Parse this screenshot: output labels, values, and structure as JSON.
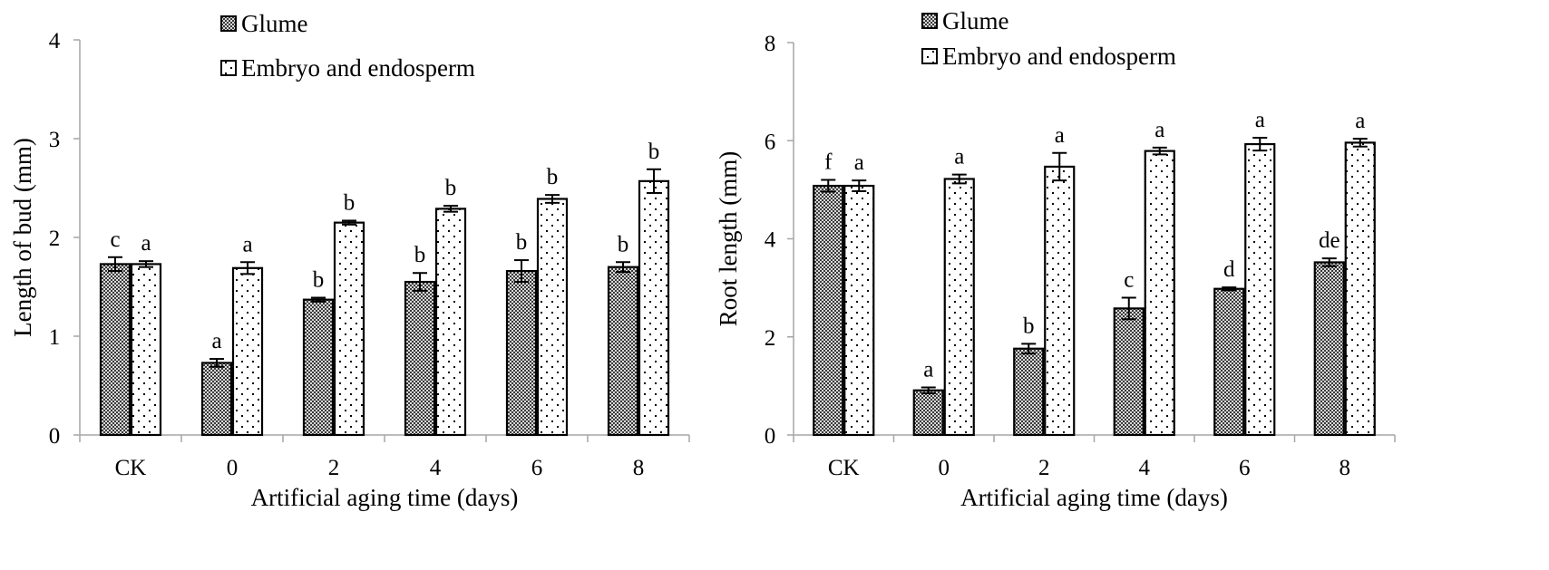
{
  "chart_data": [
    {
      "type": "bar",
      "categories": [
        "CK",
        "0",
        "2",
        "4",
        "6",
        "8"
      ],
      "xlabel": "Artificial aging time (days)",
      "ylabel": "Length of bud (mm)",
      "ylim": [
        0,
        4
      ],
      "yticks": [
        "0",
        "1",
        "2",
        "3",
        "4"
      ],
      "grid": false,
      "legend_placement": "top-left",
      "series": [
        {
          "name": "Glume",
          "values": [
            1.73,
            0.73,
            1.37,
            1.55,
            1.66,
            1.7
          ],
          "errors": [
            0.07,
            0.04,
            0.02,
            0.09,
            0.11,
            0.05
          ],
          "labels": [
            "c",
            "a",
            "b",
            "b",
            "b",
            "b"
          ],
          "pattern": "crosshatch-dark"
        },
        {
          "name": "Embryo and endosperm",
          "values": [
            1.73,
            1.69,
            2.15,
            2.29,
            2.39,
            2.57
          ],
          "errors": [
            0.03,
            0.06,
            0.02,
            0.03,
            0.04,
            0.12
          ],
          "labels": [
            "a",
            "a",
            "b",
            "b",
            "b",
            "b"
          ],
          "pattern": "sparse-dots"
        }
      ]
    },
    {
      "type": "bar",
      "categories": [
        "CK",
        "0",
        "2",
        "4",
        "6",
        "8"
      ],
      "xlabel": "Artificial aging time (days)",
      "ylabel": "Root length (mm)",
      "ylim": [
        0,
        8
      ],
      "yticks": [
        "0",
        "2",
        "4",
        "6",
        "8"
      ],
      "grid": false,
      "legend_placement": "top-left",
      "series": [
        {
          "name": "Glume",
          "values": [
            5.08,
            0.91,
            1.76,
            2.58,
            2.98,
            3.52
          ],
          "errors": [
            0.12,
            0.06,
            0.1,
            0.22,
            0.03,
            0.08
          ],
          "labels": [
            "f",
            "a",
            "b",
            "c",
            "d",
            "de"
          ],
          "pattern": "crosshatch-dark"
        },
        {
          "name": "Embryo and endosperm",
          "values": [
            5.08,
            5.22,
            5.47,
            5.79,
            5.93,
            5.96
          ],
          "errors": [
            0.11,
            0.09,
            0.28,
            0.07,
            0.13,
            0.08
          ],
          "labels": [
            "a",
            "a",
            "a",
            "a",
            "a",
            "a"
          ],
          "pattern": "sparse-dots"
        }
      ]
    }
  ],
  "colors": {
    "bar_outline": "#000000",
    "glume_fill_dark": "#3a3a3a",
    "glume_fill_light": "#d8d8d8",
    "embryo_fill": "#ffffff",
    "embryo_dots": "#000000",
    "axis": "#a6a6a6"
  }
}
